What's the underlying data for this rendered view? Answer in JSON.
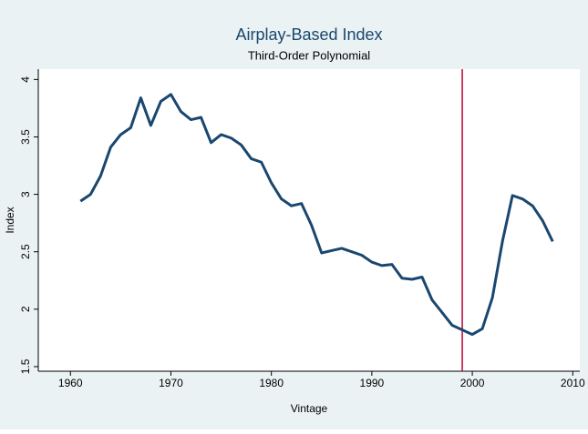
{
  "chart_data": {
    "type": "line",
    "title": "Airplay-Based Index",
    "subtitle": "Third-Order Polynomial",
    "x_label": "Vintage",
    "y_label": "Index",
    "x": [
      1961,
      1962,
      1963,
      1964,
      1965,
      1966,
      1967,
      1968,
      1969,
      1970,
      1971,
      1972,
      1973,
      1974,
      1975,
      1976,
      1977,
      1978,
      1979,
      1980,
      1981,
      1982,
      1983,
      1984,
      1985,
      1986,
      1987,
      1988,
      1989,
      1990,
      1991,
      1992,
      1993,
      1994,
      1995,
      1996,
      1997,
      1998,
      1999,
      2000,
      2001,
      2002,
      2003,
      2004,
      2005,
      2006,
      2007,
      2008
    ],
    "series": [
      {
        "color": "#1a476f",
        "values": [
          2.94,
          3.0,
          3.16,
          3.41,
          3.52,
          3.58,
          3.84,
          3.6,
          3.81,
          3.87,
          3.72,
          3.65,
          3.67,
          3.45,
          3.52,
          3.49,
          3.43,
          3.31,
          3.28,
          3.1,
          2.96,
          2.9,
          2.92,
          2.73,
          2.49,
          2.51,
          2.53,
          2.5,
          2.47,
          2.41,
          2.38,
          2.39,
          2.27,
          2.26,
          2.28,
          2.08,
          1.97,
          1.86,
          1.82,
          1.78,
          1.83,
          2.1,
          2.59,
          2.99,
          2.96,
          2.9,
          2.77,
          2.59
        ]
      }
    ],
    "xline": 1999,
    "xline_color": "#c10534",
    "xlim": [
      1956.8,
      2010.7
    ],
    "xticks": [
      1960,
      1970,
      1980,
      1990,
      2000,
      2010
    ],
    "ylim": [
      1.46,
      4.09
    ],
    "yticks": [
      1.5,
      2,
      2.5,
      3,
      3.5,
      4
    ],
    "grid": false
  }
}
